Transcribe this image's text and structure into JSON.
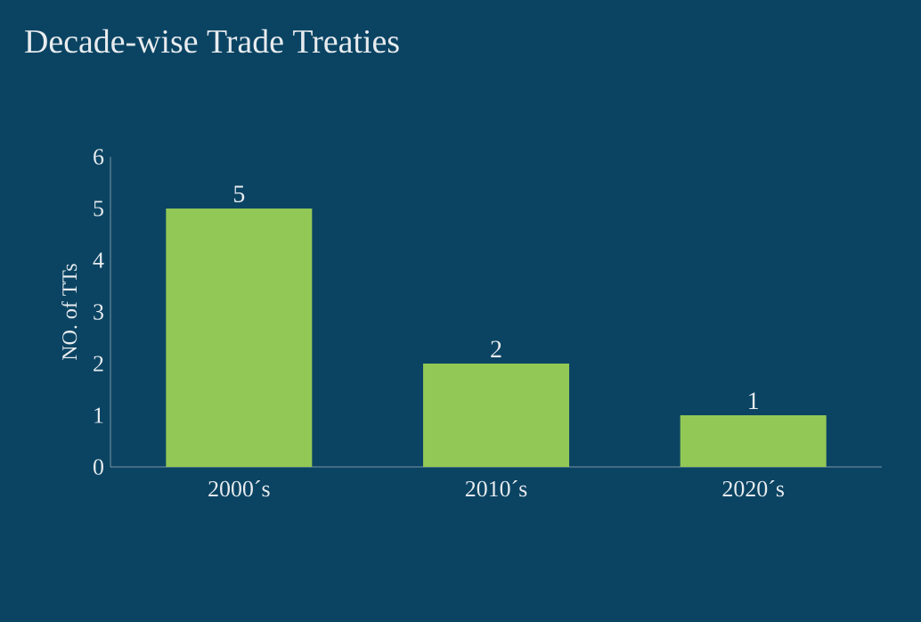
{
  "chart_data": {
    "type": "bar",
    "title": "Decade-wise Trade Treaties",
    "ylabel": "NO. of TTs",
    "categories": [
      "2000´s",
      "2010´s",
      "2020´s"
    ],
    "values": [
      5,
      2,
      1
    ],
    "color": "#92c856",
    "ylim": [
      0,
      6
    ],
    "yticks": [
      0,
      1,
      2,
      3,
      4,
      5,
      6
    ],
    "data_labels": true,
    "grid": false
  }
}
